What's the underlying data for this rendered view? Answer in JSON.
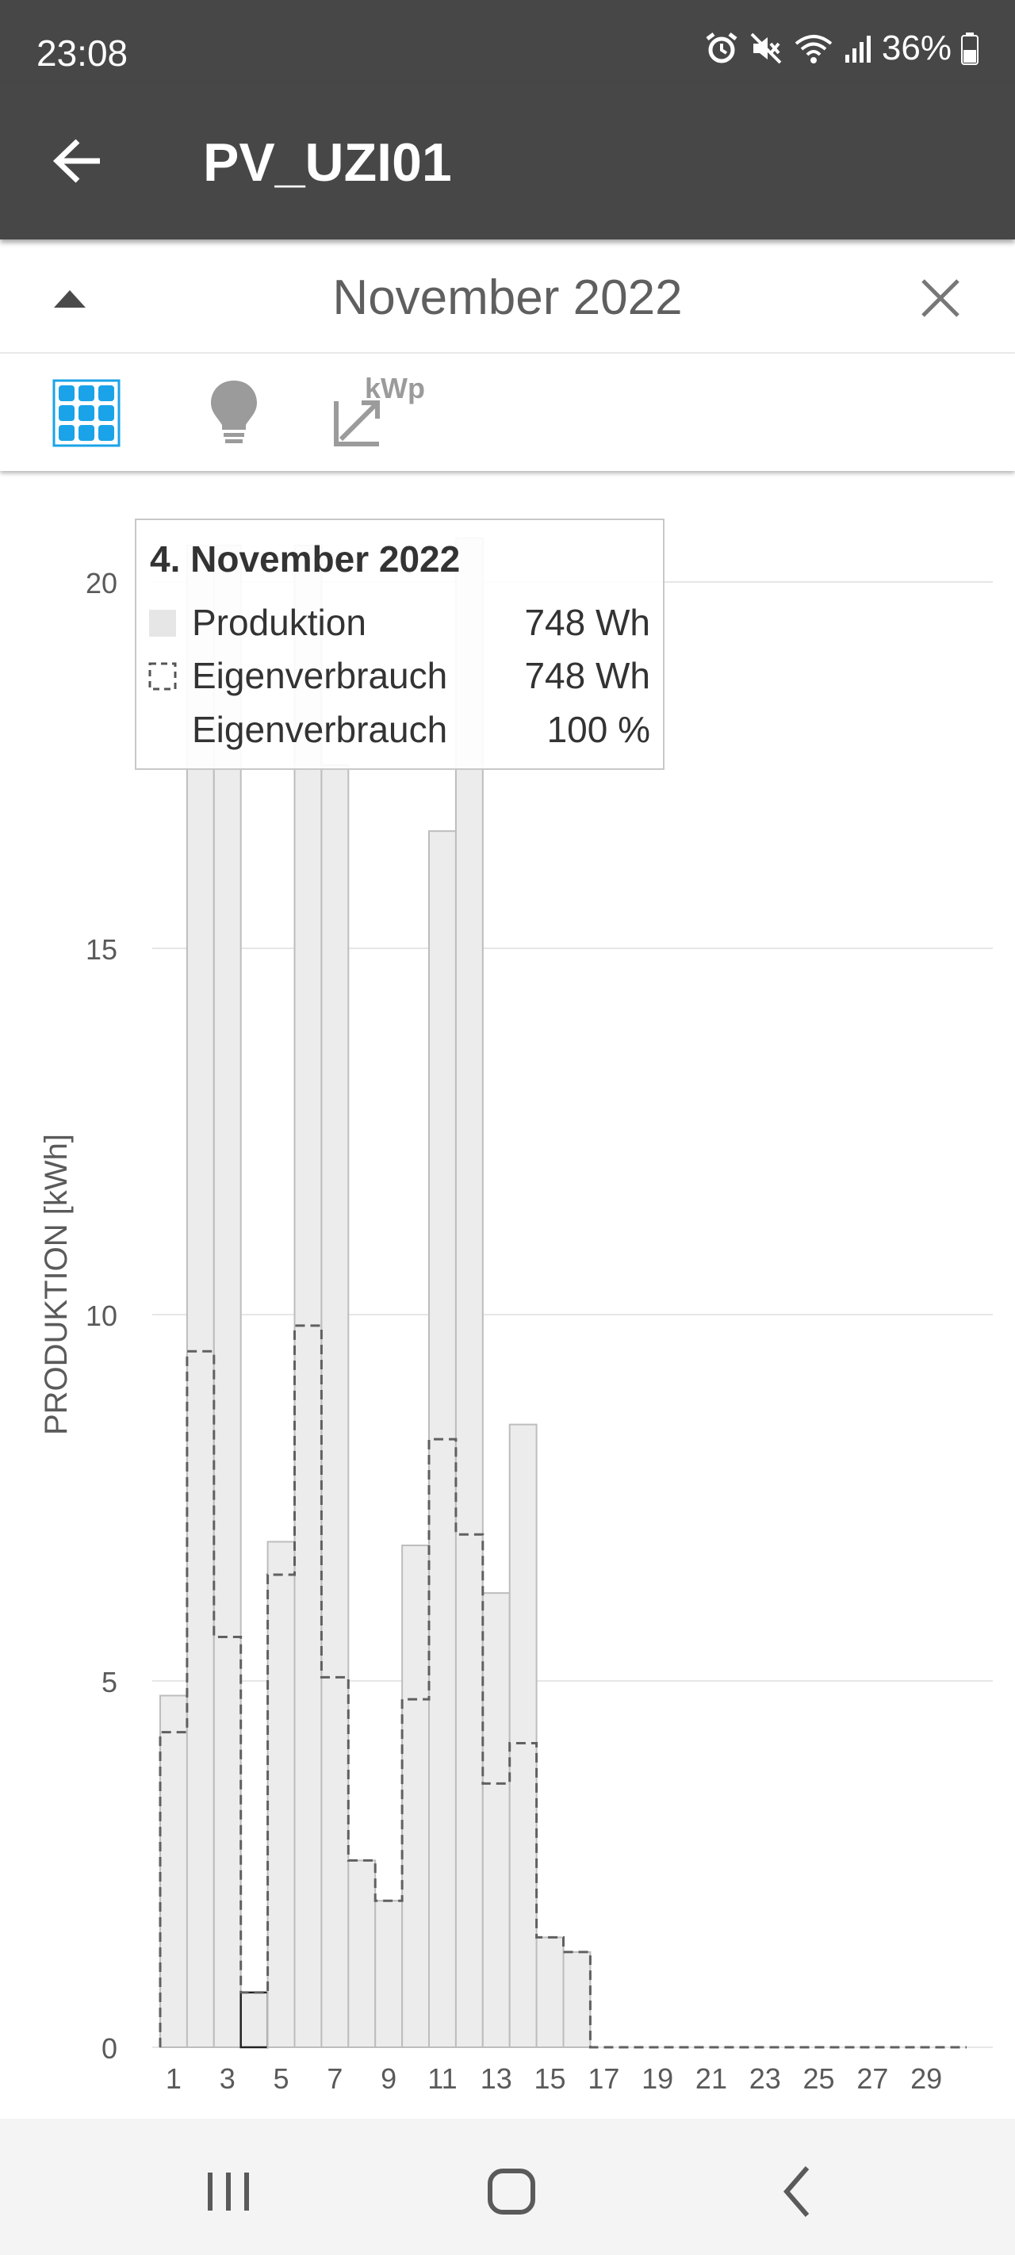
{
  "status_bar": {
    "time": "23:08",
    "battery": "36%",
    "icons": [
      "alarm-icon",
      "mute-icon",
      "wifi-icon",
      "signal-icon",
      "battery-icon"
    ]
  },
  "app_bar": {
    "title": "PV_UZI01",
    "back_icon": "arrow-left-icon"
  },
  "period": {
    "label": "November 2022",
    "collapse_icon": "chevron-up-icon",
    "close_icon": "close-icon"
  },
  "toolbar": {
    "items": [
      {
        "name": "solar-panel-icon",
        "active": true
      },
      {
        "name": "lightbulb-icon",
        "active": false
      },
      {
        "name": "kwp-scale-icon",
        "label": "kWp",
        "active": false
      }
    ]
  },
  "tooltip": {
    "title": "4. November 2022",
    "rows": [
      {
        "label": "Produktion",
        "value": "748 Wh"
      },
      {
        "label": "Eigenverbrauch",
        "value": "748 Wh"
      },
      {
        "label": "Eigenverbrauch",
        "value": "100 %"
      }
    ]
  },
  "chart_data": {
    "type": "bar",
    "ylabel": "PRODUKTION [kWh]",
    "ylim": [
      0,
      20
    ],
    "yticks": [
      0,
      5,
      10,
      15,
      20
    ],
    "grid": true,
    "x": [
      1,
      2,
      3,
      4,
      5,
      6,
      7,
      8,
      9,
      10,
      11,
      12,
      13,
      14,
      15,
      16,
      17,
      18,
      19,
      20,
      21,
      22,
      23,
      24,
      25,
      26,
      27,
      28,
      29,
      30
    ],
    "xtick_labels": [
      "1",
      "3",
      "5",
      "7",
      "9",
      "11",
      "13",
      "15",
      "17",
      "19",
      "21",
      "23",
      "25",
      "27",
      "29"
    ],
    "series": [
      {
        "name": "Produktion",
        "style": "filled",
        "values": [
          4.8,
          20.5,
          20.5,
          0.748,
          6.9,
          20.5,
          17.5,
          2.55,
          2.0,
          6.85,
          16.6,
          20.6,
          6.2,
          8.5,
          1.5,
          1.3,
          0,
          0,
          0,
          0,
          0,
          0,
          0,
          0,
          0,
          0,
          0,
          0,
          0,
          0
        ]
      },
      {
        "name": "Eigenverbrauch",
        "style": "dashed-step",
        "values": [
          4.3,
          9.5,
          5.6,
          0.748,
          6.45,
          9.85,
          5.05,
          2.55,
          2.0,
          4.75,
          8.3,
          7.0,
          3.6,
          4.15,
          1.5,
          1.3,
          0,
          0,
          0,
          0,
          0,
          0,
          0,
          0,
          0,
          0,
          0,
          0,
          0,
          0
        ]
      }
    ],
    "highlight_index": 3,
    "colors": {
      "bar_fill": "#ececec",
      "bar_stroke": "#bdbdbd",
      "dashed": "#606060",
      "grid": "#e6e6e6",
      "axis_text": "#5a5a5a"
    }
  }
}
